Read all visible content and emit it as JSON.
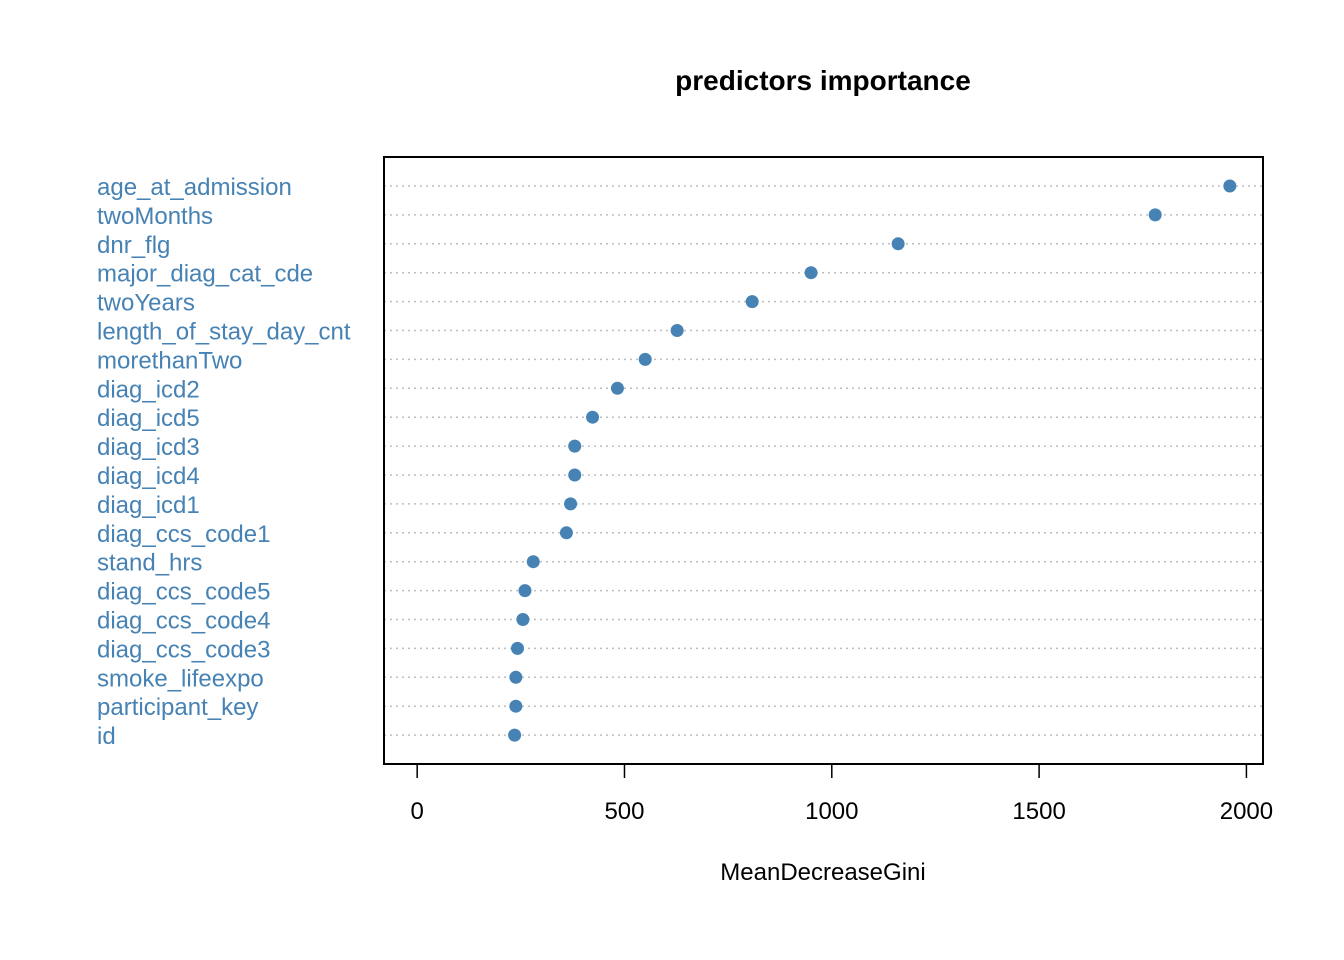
{
  "chart_data": {
    "type": "scatter",
    "style": "dotchart",
    "title": "predictors importance",
    "xlabel": "MeanDecreaseGini",
    "ylabel": "",
    "xlim": [
      -80,
      2040
    ],
    "xticks": [
      0,
      500,
      1000,
      1500,
      2000
    ],
    "xtick_labels": [
      "0",
      "500",
      "1000",
      "1500",
      "2000"
    ],
    "grid": "dotted horizontal lines",
    "colors": {
      "point": "#4682B4",
      "label": "#4682B4",
      "grid": "#BEBEBE",
      "axis": "#000000"
    },
    "categories": [
      "age_at_admission",
      "twoMonths",
      "dnr_flg",
      "major_diag_cat_cde",
      "twoYears",
      "length_of_stay_day_cnt",
      "morethanTwo",
      "diag_icd2",
      "diag_icd5",
      "diag_icd3",
      "diag_icd4",
      "diag_icd1",
      "diag_ccs_code1",
      "stand_hrs",
      "diag_ccs_code5",
      "diag_ccs_code4",
      "diag_ccs_code3",
      "smoke_lifeexpo",
      "participant_key",
      "id"
    ],
    "values": [
      1960,
      1780,
      1160,
      950,
      808,
      627,
      550,
      483,
      423,
      380,
      380,
      370,
      360,
      280,
      260,
      255,
      242,
      238,
      238,
      235
    ]
  }
}
